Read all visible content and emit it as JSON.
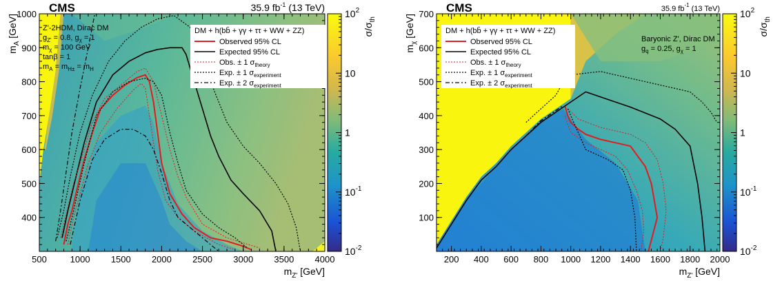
{
  "chart_data": [
    {
      "type": "heatmap",
      "cms_label": "CMS",
      "lumi": "35.9 fb",
      "lumi_sup": "-1",
      "lumi_suffix": " (13 TeV)",
      "xlabel": "m",
      "xlabel_sub": "Z'",
      "xlabel_unit": " [GeV]",
      "ylabel": "m",
      "ylabel_sub": "A",
      "ylabel_unit": " [GeV]",
      "zlabel": "σ/σ",
      "zlabel_sub": "th",
      "xlim": [
        500,
        4000
      ],
      "ylim": [
        300,
        1000
      ],
      "zlim": [
        0.01,
        100
      ],
      "z_log": true,
      "x_ticks": [
        "500",
        "1000",
        "1500",
        "2000",
        "2500",
        "3000",
        "3500",
        "4000"
      ],
      "y_ticks": [
        "400",
        "500",
        "600",
        "700",
        "800",
        "900",
        "1000"
      ],
      "z_ticks": [
        {
          "b": "10",
          "e": "2"
        },
        {
          "b": "10",
          "e": ""
        },
        {
          "b": "1",
          "e": ""
        },
        {
          "b": "10",
          "e": "-1"
        },
        {
          "b": "10",
          "e": "-2"
        }
      ],
      "model_text": [
        {
          "t": "Z'-2HDM, Dirac DM"
        },
        {
          "t": "g",
          "s": "Z'",
          "t2": " = 0.8, g",
          "s2": "χ",
          "t3": " = 1"
        },
        {
          "t": "m",
          "s": "χ",
          "t2": " = 100 GeV"
        },
        {
          "t": "tanβ = 1"
        },
        {
          "t": "m",
          "s": "A",
          "t2": " = m",
          "s2": "H±",
          "t3": " = m",
          "s3": "H"
        }
      ],
      "legend_header": "DM + h(bb̄ + γγ + ττ + WW + ZZ)",
      "legend": [
        {
          "style": "obs",
          "label": "Observed 95% CL",
          "sub": ""
        },
        {
          "style": "exp",
          "label": "Expected 95% CL",
          "sub": ""
        },
        {
          "style": "obsth",
          "label": "Obs. ± 1 σ",
          "sub": "theory"
        },
        {
          "style": "exp1",
          "label": "Exp. ± 1 σ",
          "sub": "experiment"
        },
        {
          "style": "exp2",
          "label": "Exp. ± 2 σ",
          "sub": "experiment"
        }
      ],
      "contours": {
        "observed": [
          [
            800,
            320
          ],
          [
            850,
            380
          ],
          [
            900,
            420
          ],
          [
            950,
            470
          ],
          [
            1000,
            520
          ],
          [
            1050,
            570
          ],
          [
            1150,
            650
          ],
          [
            1250,
            720
          ],
          [
            1400,
            760
          ],
          [
            1550,
            790
          ],
          [
            1700,
            812
          ],
          [
            1800,
            820
          ],
          [
            1850,
            800
          ],
          [
            1900,
            740
          ],
          [
            1950,
            650
          ],
          [
            2000,
            560
          ],
          [
            2100,
            470
          ],
          [
            2250,
            410
          ],
          [
            2400,
            370
          ],
          [
            2600,
            340
          ],
          [
            2800,
            330
          ],
          [
            3000,
            315
          ],
          [
            3100,
            305
          ]
        ],
        "expected": [
          [
            780,
            340
          ],
          [
            850,
            420
          ],
          [
            950,
            520
          ],
          [
            1050,
            620
          ],
          [
            1200,
            740
          ],
          [
            1400,
            820
          ],
          [
            1600,
            860
          ],
          [
            1800,
            885
          ],
          [
            1950,
            895
          ],
          [
            2100,
            900
          ],
          [
            2250,
            900
          ],
          [
            2300,
            880
          ],
          [
            2400,
            800
          ],
          [
            2500,
            720
          ],
          [
            2600,
            640
          ],
          [
            2700,
            580
          ],
          [
            2850,
            510
          ],
          [
            3000,
            470
          ],
          [
            3200,
            420
          ],
          [
            3350,
            360
          ],
          [
            3400,
            300
          ]
        ],
        "obs_theory_up": [
          [
            760,
            340
          ],
          [
            830,
            410
          ],
          [
            920,
            500
          ],
          [
            1000,
            560
          ],
          [
            1150,
            680
          ],
          [
            1300,
            750
          ],
          [
            1500,
            790
          ],
          [
            1700,
            830
          ],
          [
            1800,
            840
          ],
          [
            1900,
            800
          ],
          [
            2000,
            700
          ],
          [
            2100,
            600
          ],
          [
            2200,
            520
          ],
          [
            2300,
            460
          ],
          [
            2500,
            380
          ],
          [
            2800,
            340
          ],
          [
            3200,
            310
          ]
        ],
        "obs_theory_down": [
          [
            850,
            320
          ],
          [
            920,
            400
          ],
          [
            1000,
            470
          ],
          [
            1100,
            560
          ],
          [
            1250,
            650
          ],
          [
            1450,
            720
          ],
          [
            1650,
            775
          ],
          [
            1750,
            795
          ],
          [
            1800,
            780
          ],
          [
            1850,
            700
          ],
          [
            1900,
            620
          ],
          [
            1950,
            540
          ],
          [
            2050,
            450
          ],
          [
            2200,
            400
          ],
          [
            2400,
            360
          ],
          [
            2700,
            320
          ],
          [
            2900,
            305
          ]
        ],
        "exp_1sigma_up": [
          [
            720,
            340
          ],
          [
            800,
            420
          ],
          [
            880,
            520
          ],
          [
            1000,
            650
          ],
          [
            1150,
            760
          ],
          [
            1350,
            860
          ],
          [
            1550,
            920
          ],
          [
            1750,
            960
          ],
          [
            1950,
            985
          ],
          [
            2150,
            995
          ],
          [
            2350,
            960
          ],
          [
            2500,
            870
          ],
          [
            2650,
            770
          ],
          [
            2800,
            680
          ],
          [
            3000,
            610
          ],
          [
            3200,
            560
          ],
          [
            3400,
            500
          ],
          [
            3550,
            440
          ],
          [
            3650,
            370
          ],
          [
            3700,
            300
          ]
        ],
        "exp_1sigma_down": [
          [
            830,
            330
          ],
          [
            920,
            420
          ],
          [
            1050,
            560
          ],
          [
            1200,
            700
          ],
          [
            1400,
            770
          ],
          [
            1600,
            800
          ],
          [
            1800,
            810
          ],
          [
            1900,
            800
          ],
          [
            2000,
            760
          ],
          [
            2100,
            650
          ],
          [
            2200,
            560
          ],
          [
            2300,
            480
          ],
          [
            2500,
            410
          ],
          [
            2700,
            370
          ],
          [
            2900,
            340
          ],
          [
            3050,
            310
          ]
        ],
        "exp_2sigma_up": [
          [
            700,
            330
          ],
          [
            760,
            420
          ],
          [
            820,
            520
          ],
          [
            900,
            650
          ],
          [
            1000,
            780
          ],
          [
            1100,
            900
          ],
          [
            1180,
            1000
          ]
        ],
        "exp_2sigma_down": [
          [
            880,
            320
          ],
          [
            1000,
            450
          ],
          [
            1150,
            570
          ],
          [
            1300,
            630
          ],
          [
            1500,
            660
          ],
          [
            1650,
            660
          ],
          [
            1800,
            640
          ],
          [
            1900,
            600
          ],
          [
            2000,
            530
          ],
          [
            2100,
            450
          ],
          [
            2200,
            400
          ],
          [
            2400,
            360
          ],
          [
            2600,
            320
          ],
          [
            2700,
            300
          ]
        ]
      }
    },
    {
      "type": "heatmap",
      "cms_label": "CMS",
      "lumi": "35.9 fb",
      "lumi_sup": "-1",
      "lumi_suffix": " (13 TeV)",
      "xlabel": "m",
      "xlabel_sub": "Z'",
      "xlabel_unit": " [GeV]",
      "ylabel": "m",
      "ylabel_sub": "χ",
      "ylabel_unit": " [GeV]",
      "zlabel": "σ/σ",
      "zlabel_sub": "th",
      "xlim": [
        100,
        2000
      ],
      "ylim": [
        0,
        700
      ],
      "zlim": [
        0.01,
        100
      ],
      "z_log": true,
      "x_ticks": [
        "200",
        "400",
        "600",
        "800",
        "1000",
        "1200",
        "1400",
        "1600",
        "1800",
        "2000"
      ],
      "y_ticks": [
        "100",
        "200",
        "300",
        "400",
        "500",
        "600",
        "700"
      ],
      "z_ticks": [
        {
          "b": "10",
          "e": "2"
        },
        {
          "b": "10",
          "e": ""
        },
        {
          "b": "1",
          "e": ""
        },
        {
          "b": "10",
          "e": "-1"
        },
        {
          "b": "10",
          "e": "-2"
        }
      ],
      "model_text": [
        {
          "t": "Baryonic Z', Dirac DM"
        },
        {
          "t": "g",
          "s": "q",
          "t2": " = 0.25, g",
          "s2": "χ",
          "t3": " = 1"
        }
      ],
      "legend_header": "DM + h(bb̄ + γγ + ττ + WW + ZZ)",
      "legend": [
        {
          "style": "obs",
          "label": "Observed 95% CL",
          "sub": ""
        },
        {
          "style": "exp",
          "label": "Expected 95% CL",
          "sub": ""
        },
        {
          "style": "obsth",
          "label": "Obs. ± 1 σ",
          "sub": "theory"
        },
        {
          "style": "exp1",
          "label": "Exp. ± 1 σ",
          "sub": "experiment"
        },
        {
          "style": "exp2",
          "label": "Exp. ± 2 σ",
          "sub": "experiment"
        }
      ],
      "contours": {
        "observed": [
          [
            960,
            430
          ],
          [
            980,
            400
          ],
          [
            1000,
            380
          ],
          [
            1050,
            360
          ],
          [
            1100,
            345
          ],
          [
            1200,
            330
          ],
          [
            1300,
            320
          ],
          [
            1400,
            310
          ],
          [
            1450,
            280
          ],
          [
            1500,
            250
          ],
          [
            1540,
            200
          ],
          [
            1560,
            150
          ],
          [
            1580,
            100
          ],
          [
            1550,
            50
          ],
          [
            1520,
            0
          ]
        ],
        "expected": [
          [
            100,
            10
          ],
          [
            200,
            80
          ],
          [
            300,
            150
          ],
          [
            400,
            210
          ],
          [
            500,
            250
          ],
          [
            600,
            300
          ],
          [
            700,
            340
          ],
          [
            750,
            360
          ],
          [
            800,
            380
          ],
          [
            900,
            410
          ],
          [
            1000,
            440
          ],
          [
            1100,
            470
          ],
          [
            1200,
            455
          ],
          [
            1400,
            425
          ],
          [
            1600,
            390
          ],
          [
            1700,
            360
          ],
          [
            1800,
            310
          ],
          [
            1850,
            200
          ],
          [
            1880,
            100
          ],
          [
            1900,
            0
          ]
        ],
        "obs_theory_up": [
          [
            980,
            420
          ],
          [
            1050,
            390
          ],
          [
            1200,
            365
          ],
          [
            1400,
            345
          ],
          [
            1500,
            320
          ],
          [
            1580,
            270
          ],
          [
            1620,
            200
          ],
          [
            1640,
            120
          ],
          [
            1620,
            40
          ],
          [
            1600,
            0
          ]
        ],
        "obs_theory_down": [
          [
            960,
            400
          ],
          [
            1000,
            350
          ],
          [
            1100,
            320
          ],
          [
            1200,
            300
          ],
          [
            1300,
            280
          ],
          [
            1380,
            240
          ],
          [
            1440,
            180
          ],
          [
            1480,
            120
          ],
          [
            1490,
            60
          ],
          [
            1470,
            0
          ]
        ],
        "exp_1sigma_up": [
          [
            700,
            380
          ],
          [
            800,
            420
          ],
          [
            900,
            460
          ],
          [
            950,
            500
          ],
          [
            1000,
            520
          ],
          [
            1200,
            530
          ],
          [
            1500,
            500
          ],
          [
            1700,
            480
          ],
          [
            1800,
            470
          ],
          [
            1880,
            440
          ],
          [
            1940,
            410
          ],
          [
            1980,
            380
          ]
        ],
        "exp_1sigma_down": [
          [
            980,
            420
          ],
          [
            1020,
            380
          ],
          [
            1060,
            340
          ],
          [
            1100,
            300
          ],
          [
            1250,
            270
          ],
          [
            1350,
            240
          ],
          [
            1400,
            180
          ],
          [
            1430,
            100
          ],
          [
            1440,
            0
          ]
        ],
        "exp_2sigma_up": [
          [
            100,
            10
          ],
          [
            200,
            80
          ],
          [
            300,
            150
          ],
          [
            400,
            210
          ],
          [
            500,
            250
          ],
          [
            600,
            300
          ],
          [
            700,
            340
          ],
          [
            800,
            385
          ],
          [
            900,
            415
          ],
          [
            950,
            430
          ]
        ],
        "exp_2sigma_down": [
          [
            100,
            10
          ],
          [
            200,
            80
          ],
          [
            300,
            150
          ],
          [
            400,
            210
          ],
          [
            500,
            250
          ],
          [
            600,
            300
          ],
          [
            700,
            340
          ],
          [
            800,
            385
          ],
          [
            900,
            415
          ],
          [
            950,
            430
          ]
        ]
      }
    }
  ]
}
